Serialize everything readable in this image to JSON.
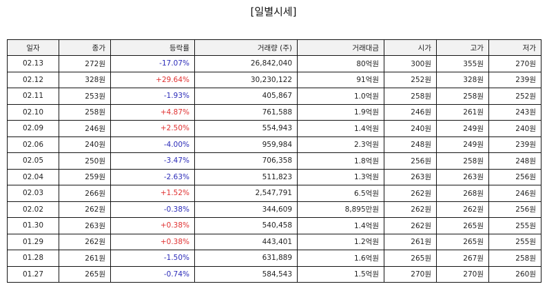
{
  "title": "[일별시세]",
  "columns": [
    "일자",
    "종가",
    "등락률",
    "거래량 (주)",
    "거래대금",
    "시가",
    "고가",
    "저가"
  ],
  "colors": {
    "up": "#e03030",
    "down": "#2b2bb8"
  },
  "rows": [
    {
      "date": "02.13",
      "close": "272원",
      "change": "-17.07%",
      "dir": "down",
      "volume": "26,842,040",
      "amount": "80억원",
      "open": "300원",
      "high": "355원",
      "low": "270원"
    },
    {
      "date": "02.12",
      "close": "328원",
      "change": "+29.64%",
      "dir": "up",
      "volume": "30,230,122",
      "amount": "91억원",
      "open": "252원",
      "high": "328원",
      "low": "239원"
    },
    {
      "date": "02.11",
      "close": "253원",
      "change": "-1.93%",
      "dir": "down",
      "volume": "405,867",
      "amount": "1.0억원",
      "open": "258원",
      "high": "258원",
      "low": "252원"
    },
    {
      "date": "02.10",
      "close": "258원",
      "change": "+4.87%",
      "dir": "up",
      "volume": "761,588",
      "amount": "1.9억원",
      "open": "246원",
      "high": "261원",
      "low": "243원"
    },
    {
      "date": "02.09",
      "close": "246원",
      "change": "+2.50%",
      "dir": "up",
      "volume": "554,943",
      "amount": "1.4억원",
      "open": "240원",
      "high": "249원",
      "low": "240원"
    },
    {
      "date": "02.06",
      "close": "240원",
      "change": "-4.00%",
      "dir": "down",
      "volume": "959,984",
      "amount": "2.3억원",
      "open": "248원",
      "high": "249원",
      "low": "239원"
    },
    {
      "date": "02.05",
      "close": "250원",
      "change": "-3.47%",
      "dir": "down",
      "volume": "706,358",
      "amount": "1.8억원",
      "open": "256원",
      "high": "258원",
      "low": "248원"
    },
    {
      "date": "02.04",
      "close": "259원",
      "change": "-2.63%",
      "dir": "down",
      "volume": "511,823",
      "amount": "1.3억원",
      "open": "263원",
      "high": "263원",
      "low": "256원"
    },
    {
      "date": "02.03",
      "close": "266원",
      "change": "+1.52%",
      "dir": "up",
      "volume": "2,547,791",
      "amount": "6.5억원",
      "open": "262원",
      "high": "268원",
      "low": "246원"
    },
    {
      "date": "02.02",
      "close": "262원",
      "change": "-0.38%",
      "dir": "down",
      "volume": "344,609",
      "amount": "8,895만원",
      "open": "262원",
      "high": "262원",
      "low": "256원"
    },
    {
      "date": "01.30",
      "close": "263원",
      "change": "+0.38%",
      "dir": "up",
      "volume": "540,458",
      "amount": "1.4억원",
      "open": "262원",
      "high": "265원",
      "low": "255원"
    },
    {
      "date": "01.29",
      "close": "262원",
      "change": "+0.38%",
      "dir": "up",
      "volume": "443,401",
      "amount": "1.2억원",
      "open": "261원",
      "high": "265원",
      "low": "255원"
    },
    {
      "date": "01.28",
      "close": "261원",
      "change": "-1.50%",
      "dir": "down",
      "volume": "631,889",
      "amount": "1.6억원",
      "open": "265원",
      "high": "267원",
      "low": "258원"
    },
    {
      "date": "01.27",
      "close": "265원",
      "change": "-0.74%",
      "dir": "down",
      "volume": "584,543",
      "amount": "1.5억원",
      "open": "270원",
      "high": "270원",
      "low": "260원"
    }
  ]
}
